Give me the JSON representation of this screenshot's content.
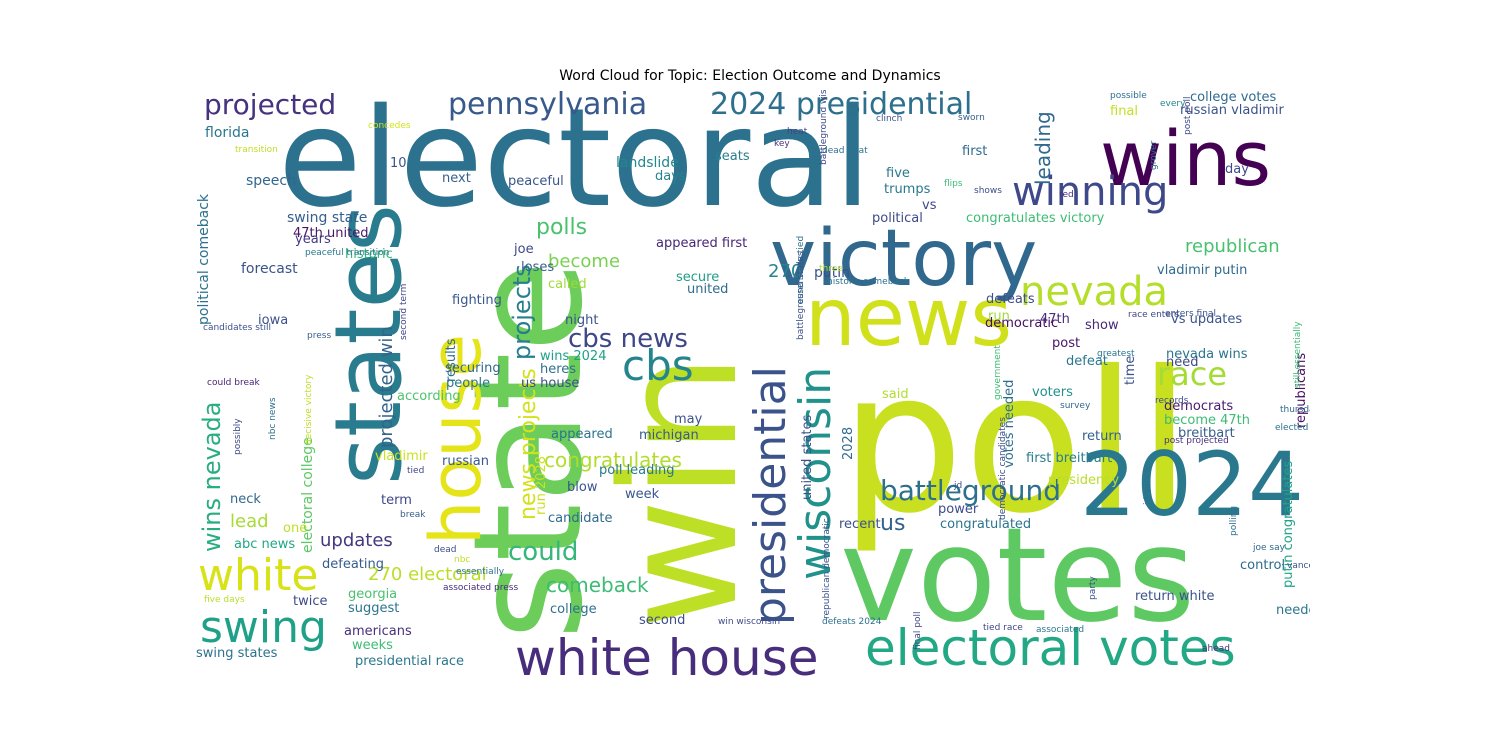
{
  "title": "Word Cloud for Topic: Election Outcome and Dynamics",
  "words": [
    {
      "text": "electoral",
      "color": "#2c728e"
    },
    {
      "text": "win",
      "color": "#bddf26"
    },
    {
      "text": "poll",
      "color": "#c8e020"
    },
    {
      "text": "state",
      "color": "#6ccd5a"
    },
    {
      "text": "votes",
      "color": "#5ec962"
    },
    {
      "text": "wins",
      "color": "#440154"
    },
    {
      "text": "victory",
      "color": "#31688e"
    },
    {
      "text": "states",
      "color": "#287c8e"
    },
    {
      "text": "news",
      "color": "#d0e11c"
    },
    {
      "text": "house",
      "color": "#e5e419"
    },
    {
      "text": "2024",
      "color": "#2a788e"
    },
    {
      "text": "white house",
      "color": "#472d7b"
    },
    {
      "text": "electoral votes",
      "color": "#22a884"
    },
    {
      "text": "presidential",
      "color": "#3b528b"
    },
    {
      "text": "wisconsin",
      "color": "#21918c"
    },
    {
      "text": "winning",
      "color": "#3e4989"
    },
    {
      "text": "nevada",
      "color": "#b5de2b"
    },
    {
      "text": "swing",
      "color": "#1fa187"
    },
    {
      "text": "white",
      "color": "#d8e219"
    },
    {
      "text": "cbs",
      "color": "#25858e"
    },
    {
      "text": "pennsylvania",
      "color": "#38598c"
    },
    {
      "text": "2024 presidential",
      "color": "#2e6f8e"
    },
    {
      "text": "projected",
      "color": "#46327e"
    },
    {
      "text": "race",
      "color": "#a5db36"
    },
    {
      "text": "battleground",
      "color": "#2d708e"
    },
    {
      "text": "cbs news",
      "color": "#3f4788"
    },
    {
      "text": "could",
      "color": "#35b779"
    },
    {
      "text": "projects",
      "color": "#277f8e"
    },
    {
      "text": "leading",
      "color": "#30698e"
    },
    {
      "text": "polls",
      "color": "#4ac16d"
    },
    {
      "text": "wins nevada",
      "color": "#27ad81"
    },
    {
      "text": "us",
      "color": "#34618d"
    },
    {
      "text": "congratulates",
      "color": "#b2dd2d"
    },
    {
      "text": "comeback",
      "color": "#3dbc74"
    },
    {
      "text": "270 electoral",
      "color": "#bade28"
    },
    {
      "text": "republican",
      "color": "#48c16e"
    },
    {
      "text": "projected win",
      "color": "#33638d"
    },
    {
      "text": "updates",
      "color": "#453781"
    },
    {
      "text": "lead",
      "color": "#a8db34"
    },
    {
      "text": "news projects",
      "color": "#d2e21b"
    },
    {
      "text": "become",
      "color": "#7ad151"
    },
    {
      "text": "270",
      "color": "#25848e"
    },
    {
      "text": "putin",
      "color": "#3c4f8a"
    },
    {
      "text": "speech",
      "color": "#31668e"
    },
    {
      "text": "florida",
      "color": "#2a768e"
    },
    {
      "text": "political comeback",
      "color": "#2d718e"
    },
    {
      "text": "electoral college",
      "color": "#5cc863"
    },
    {
      "text": "swing state",
      "color": "#355e8d"
    },
    {
      "text": "47th united",
      "color": "#481668"
    },
    {
      "text": "years",
      "color": "#443983"
    },
    {
      "text": "historic",
      "color": "#35b779"
    },
    {
      "text": "forecast",
      "color": "#3a538b"
    },
    {
      "text": "iowa",
      "color": "#3b528b"
    },
    {
      "text": "neck",
      "color": "#31688e"
    },
    {
      "text": "one",
      "color": "#bddf26"
    },
    {
      "text": "abc news",
      "color": "#21a685"
    },
    {
      "text": "defeating",
      "color": "#365c8d"
    },
    {
      "text": "georgia",
      "color": "#4ac16d"
    },
    {
      "text": "twice",
      "color": "#3e4a89"
    },
    {
      "text": "suggest",
      "color": "#2c738e"
    },
    {
      "text": "americans",
      "color": "#46307e"
    },
    {
      "text": "weeks",
      "color": "#3dbc74"
    },
    {
      "text": "swing states",
      "color": "#2c728e"
    },
    {
      "text": "presidential race",
      "color": "#2a778e"
    },
    {
      "text": "landslide",
      "color": "#23888e"
    },
    {
      "text": "days",
      "color": "#26828e"
    },
    {
      "text": "next",
      "color": "#355f8d"
    },
    {
      "text": "peaceful",
      "color": "#39568c"
    },
    {
      "text": "seats",
      "color": "#277e8e"
    },
    {
      "text": "five",
      "color": "#29798e"
    },
    {
      "text": "trumps",
      "color": "#2a788e"
    },
    {
      "text": "first",
      "color": "#306a8e"
    },
    {
      "text": "vs",
      "color": "#3f4889"
    },
    {
      "text": "political",
      "color": "#3e4989"
    },
    {
      "text": "congratulates victory",
      "color": "#3dbc74"
    },
    {
      "text": "appeared first",
      "color": "#482576"
    },
    {
      "text": "secure",
      "color": "#1f9e89"
    },
    {
      "text": "united",
      "color": "#2f6c8e"
    },
    {
      "text": "joe",
      "color": "#3f4788"
    },
    {
      "text": "loses",
      "color": "#35608d"
    },
    {
      "text": "called",
      "color": "#a0da39"
    },
    {
      "text": "fighting",
      "color": "#38588c"
    },
    {
      "text": "night",
      "color": "#3a548c"
    },
    {
      "text": "results",
      "color": "#2e6e8e"
    },
    {
      "text": "securing",
      "color": "#31678e"
    },
    {
      "text": "heres",
      "color": "#2d708e"
    },
    {
      "text": "people",
      "color": "#2a768e"
    },
    {
      "text": "wins 2024",
      "color": "#1fa088"
    },
    {
      "text": "us house",
      "color": "#3d4e8a"
    },
    {
      "text": "according",
      "color": "#4ec36b"
    },
    {
      "text": "appeared",
      "color": "#2b748e"
    },
    {
      "text": "michigan",
      "color": "#38598c"
    },
    {
      "text": "may",
      "color": "#3b528b"
    },
    {
      "text": "poll leading",
      "color": "#2a788e"
    },
    {
      "text": "blow",
      "color": "#3a548c"
    },
    {
      "text": "week",
      "color": "#39568c"
    },
    {
      "text": "candidate",
      "color": "#2f6b8e"
    },
    {
      "text": "second",
      "color": "#3e4c8a"
    },
    {
      "text": "college",
      "color": "#2d718e"
    },
    {
      "text": "russian",
      "color": "#37598c"
    },
    {
      "text": "vladimir",
      "color": "#cae11f"
    },
    {
      "text": "term",
      "color": "#3f4889"
    },
    {
      "text": "run 2028",
      "color": "#cde11d"
    },
    {
      "text": "united states",
      "color": "#3b528b"
    },
    {
      "text": "2028",
      "color": "#2f6b8e"
    },
    {
      "text": "votes needed",
      "color": "#2e6e8e"
    },
    {
      "text": "first breitbart",
      "color": "#287d8e"
    },
    {
      "text": "recent",
      "color": "#3b518b"
    },
    {
      "text": "power",
      "color": "#3e4c8a"
    },
    {
      "text": "congratulated",
      "color": "#2b758e"
    },
    {
      "text": "presidency",
      "color": "#b8de29"
    },
    {
      "text": "defeats",
      "color": "#3d4e8a"
    },
    {
      "text": "47th",
      "color": "#472f7d"
    },
    {
      "text": "show",
      "color": "#482878"
    },
    {
      "text": "democratic",
      "color": "#470d60"
    },
    {
      "text": "post",
      "color": "#481467"
    },
    {
      "text": "defeat",
      "color": "#2a788e"
    },
    {
      "text": "time",
      "color": "#3b528b"
    },
    {
      "text": "voters",
      "color": "#20928c"
    },
    {
      "text": "said",
      "color": "#b0dd2f"
    },
    {
      "text": "return",
      "color": "#35608d"
    },
    {
      "text": "run",
      "color": "#a2da37"
    },
    {
      "text": "vladimir putin",
      "color": "#306a8e"
    },
    {
      "text": "nevada wins",
      "color": "#2b748e"
    },
    {
      "text": "vs updates",
      "color": "#3a548c"
    },
    {
      "text": "democrats",
      "color": "#481b6d"
    },
    {
      "text": "need",
      "color": "#3f4788"
    },
    {
      "text": "become 47th",
      "color": "#3dbc74"
    },
    {
      "text": "breitbart",
      "color": "#355f8d"
    },
    {
      "text": "republicans",
      "color": "#471063"
    },
    {
      "text": "win 2024",
      "color": "#1f968b"
    },
    {
      "text": "putin congratulates",
      "color": "#20a486"
    },
    {
      "text": "control",
      "color": "#2f6b8e"
    },
    {
      "text": "return white",
      "color": "#3b528b"
    },
    {
      "text": "needed",
      "color": "#2a788e"
    },
    {
      "text": "college votes",
      "color": "#306a8e"
    },
    {
      "text": "russian vladimir",
      "color": "#3b528b"
    },
    {
      "text": "final",
      "color": "#c2df23"
    },
    {
      "text": "battleground state",
      "color": "#414487"
    },
    {
      "text": "day",
      "color": "#3e4989"
    },
    {
      "text": "10",
      "color": "#39568c"
    },
    {
      "text": "possible",
      "color": "#2e6f8e"
    },
    {
      "text": "every",
      "color": "#25858e"
    },
    {
      "text": "sworn",
      "color": "#355f8d"
    },
    {
      "text": "clinch",
      "color": "#3b528b"
    },
    {
      "text": "post poll",
      "color": "#3e4a89"
    },
    {
      "text": "heat",
      "color": "#404688"
    },
    {
      "text": "concedes",
      "color": "#d5e21a"
    },
    {
      "text": "key",
      "color": "#46327e"
    },
    {
      "text": "dead heat",
      "color": "#2c728e"
    },
    {
      "text": "battleground wisconsin",
      "color": "#3f4788"
    },
    {
      "text": "transition",
      "color": "#c0df25"
    },
    {
      "text": "flips",
      "color": "#3dbc74"
    },
    {
      "text": "grover",
      "color": "#2d708e"
    },
    {
      "text": "red",
      "color": "#472d7b"
    },
    {
      "text": "shows",
      "color": "#3d4e8a"
    },
    {
      "text": "abc",
      "color": "#3b528b"
    },
    {
      "text": "peaceful transition",
      "color": "#2a788e"
    },
    {
      "text": "three",
      "color": "#addc30"
    },
    {
      "text": "historic comeback",
      "color": "#2c728e"
    },
    {
      "text": "essentially tied",
      "color": "#2e6e8e"
    },
    {
      "text": "battleground states",
      "color": "#3b528b"
    },
    {
      "text": "enters final",
      "color": "#3a548c"
    },
    {
      "text": "race enters",
      "color": "#3f4788"
    },
    {
      "text": "greatest",
      "color": "#2b748e"
    },
    {
      "text": "records",
      "color": "#3e4c8a"
    },
    {
      "text": "thursday",
      "color": "#31678e"
    },
    {
      "text": "post projected",
      "color": "#46307e"
    },
    {
      "text": "still essentially",
      "color": "#3dbc74"
    },
    {
      "text": "elected",
      "color": "#2d718e"
    },
    {
      "text": "candidates still",
      "color": "#3b528b"
    },
    {
      "text": "press",
      "color": "#355f8d"
    },
    {
      "text": "second term",
      "color": "#404688"
    },
    {
      "text": "could break",
      "color": "#482576"
    },
    {
      "text": "decisive victory",
      "color": "#bddf26"
    },
    {
      "text": "possibly",
      "color": "#3e4989"
    },
    {
      "text": "nbc news",
      "color": "#2c728e"
    },
    {
      "text": "government",
      "color": "#3dbc74"
    },
    {
      "text": "survey",
      "color": "#31688e"
    },
    {
      "text": "jd",
      "color": "#3b528b"
    },
    {
      "text": "jd vance",
      "color": "#2e6f8e"
    },
    {
      "text": "democratic candidates",
      "color": "#3e4c8a"
    },
    {
      "text": "tied",
      "color": "#3f4788"
    },
    {
      "text": "break",
      "color": "#355f8d"
    },
    {
      "text": "dead",
      "color": "#3d4e8a"
    },
    {
      "text": "nbc",
      "color": "#c2df23"
    },
    {
      "text": "essentially",
      "color": "#2d708e"
    },
    {
      "text": "associated press",
      "color": "#472d7b"
    },
    {
      "text": "five days",
      "color": "#bade28"
    },
    {
      "text": "win wisconsin",
      "color": "#3e4a89"
    },
    {
      "text": "republican democratic",
      "color": "#3b528b"
    },
    {
      "text": "defeats 2024",
      "color": "#2c728e"
    },
    {
      "text": "final poll",
      "color": "#3e4989"
    },
    {
      "text": "tied race",
      "color": "#3f4788"
    },
    {
      "text": "associated",
      "color": "#2a788e"
    },
    {
      "text": "party",
      "color": "#3b528b"
    },
    {
      "text": "polling",
      "color": "#2d718e"
    },
    {
      "text": "joe say",
      "color": "#31678e"
    },
    {
      "text": "vance",
      "color": "#3b528b"
    },
    {
      "text": "ahead",
      "color": "#46307e"
    }
  ]
}
